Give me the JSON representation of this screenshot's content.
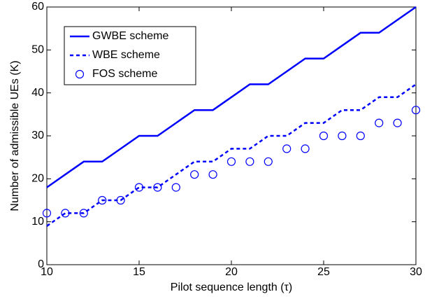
{
  "chart_data": {
    "type": "line",
    "x_label": "Pilot sequence length (τ)",
    "y_label": "Number of admissible UEs (K)",
    "x": [
      10,
      11,
      12,
      13,
      14,
      15,
      16,
      17,
      18,
      19,
      20,
      21,
      22,
      23,
      24,
      25,
      26,
      27,
      28,
      29,
      30
    ],
    "series": [
      {
        "name": "GWBE scheme",
        "color": "#0000ff",
        "line": "solid",
        "marker": "none",
        "values": [
          18,
          21,
          24,
          24,
          27,
          30,
          30,
          33,
          36,
          36,
          39,
          42,
          42,
          45,
          48,
          48,
          51,
          54,
          54,
          57,
          60
        ]
      },
      {
        "name": "WBE scheme",
        "color": "#0000ff",
        "line": "dashed",
        "marker": "none",
        "values": [
          9,
          12,
          12,
          15,
          15,
          18,
          18,
          21,
          24,
          24,
          27,
          27,
          30,
          30,
          33,
          33,
          36,
          36,
          39,
          39,
          42
        ]
      },
      {
        "name": "FOS scheme",
        "color": "#0000ff",
        "line": "none",
        "marker": "circle",
        "values": [
          12,
          12,
          12,
          15,
          15,
          18,
          18,
          18,
          21,
          21,
          24,
          24,
          24,
          27,
          27,
          30,
          30,
          30,
          33,
          33,
          36
        ]
      }
    ],
    "xlim": [
      10,
      30
    ],
    "xticks": [
      10,
      15,
      20,
      25,
      30
    ],
    "ylim": [
      0,
      60
    ],
    "yticks": [
      0,
      10,
      20,
      30,
      40,
      50,
      60
    ],
    "grid": false,
    "legend": "upper left"
  }
}
